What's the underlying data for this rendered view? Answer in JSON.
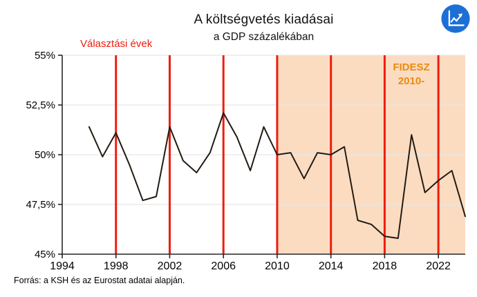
{
  "header": {
    "title": "A költségvetés kiadásai",
    "subtitle": "a GDP százalékában"
  },
  "annotations": {
    "election": "Választási évek",
    "fidesz_line1": "FIDESZ",
    "fidesz_line2": "2010-"
  },
  "source_note": "Forrás: a KSH és az Eurostat adatai alapján.",
  "colors": {
    "red_line": "#ee1c0e",
    "region_fill": "#fbdcc1",
    "fidesz_text": "#e98a0f",
    "series_line": "#221a12",
    "grid": "#e7e7e7",
    "axis": "#262626",
    "logo_blue": "#1d6fd6"
  },
  "chart_data": {
    "type": "line",
    "title": "A költségvetés kiadásai",
    "subtitle": "a GDP százalékában",
    "unit": "government expenditure, % of GDP",
    "x": [
      1996,
      1997,
      1998,
      1999,
      2000,
      2001,
      2002,
      2003,
      2004,
      2005,
      2006,
      2007,
      2008,
      2009,
      2010,
      2011,
      2012,
      2013,
      2014,
      2015,
      2016,
      2017,
      2018,
      2019,
      2020,
      2021,
      2022,
      2023,
      2024
    ],
    "values": [
      51.4,
      49.9,
      51.1,
      49.5,
      47.7,
      47.9,
      51.4,
      49.7,
      49.1,
      50.1,
      52.1,
      50.9,
      49.2,
      51.4,
      50.0,
      50.1,
      48.8,
      50.1,
      50.0,
      50.4,
      46.7,
      46.5,
      45.9,
      45.8,
      51.0,
      48.1,
      48.7,
      49.2,
      46.9
    ],
    "xlim": [
      1994,
      2024
    ],
    "ylim": [
      45,
      55
    ],
    "x_ticks": [
      1994,
      1998,
      2002,
      2006,
      2010,
      2014,
      2018,
      2022
    ],
    "y_ticks": [
      {
        "value": 55,
        "label": "55%"
      },
      {
        "value": 52.5,
        "label": "52,5%"
      },
      {
        "value": 50,
        "label": "50%"
      },
      {
        "value": 47.5,
        "label": "47,5%"
      },
      {
        "value": 45,
        "label": "45%"
      }
    ],
    "election_years": [
      1998,
      2002,
      2006,
      2010,
      2014,
      2018,
      2022
    ],
    "highlight_region": {
      "from": 2010,
      "to": 2024,
      "label": "FIDESZ 2010-"
    },
    "grid": true,
    "legend": "none"
  }
}
